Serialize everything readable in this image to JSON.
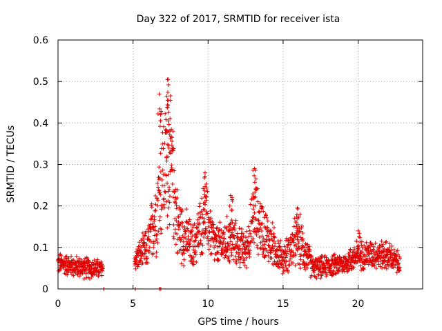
{
  "chart_data": {
    "type": "scatter",
    "title": "Day 322 of 2017, SRMTID for receiver ista",
    "xlabel": "GPS time / hours",
    "ylabel": "SRMTID / TECUs",
    "xlim": [
      0,
      24.3
    ],
    "ylim": [
      0,
      0.6
    ],
    "grid": true,
    "x_ticks": [
      0,
      5,
      10,
      15,
      20
    ],
    "y_ticks": [
      0,
      0.1,
      0.2,
      0.3,
      0.4,
      0.5,
      0.6
    ],
    "x_tick_labels": [
      "0",
      "5",
      "10",
      "15",
      "20"
    ],
    "y_tick_labels": [
      "0",
      "0.1",
      "0.2",
      "0.3",
      "0.4",
      "0.5",
      "0.6"
    ],
    "series": [
      {
        "name": "SRMTID",
        "color": "#e00000",
        "marker": "plus",
        "envelope": [
          {
            "x": 0.0,
            "base": 0.062,
            "spread": 0.03
          },
          {
            "x": 1.0,
            "base": 0.055,
            "spread": 0.03
          },
          {
            "x": 2.0,
            "base": 0.05,
            "spread": 0.03
          },
          {
            "x": 3.0,
            "base": 0.048,
            "spread": 0.025
          },
          {
            "x": 5.1,
            "base": 0.07,
            "spread": 0.03
          },
          {
            "x": 6.0,
            "base": 0.1,
            "spread": 0.06
          },
          {
            "x": 6.5,
            "base": 0.18,
            "spread": 0.12
          },
          {
            "x": 7.0,
            "base": 0.28,
            "spread": 0.18
          },
          {
            "x": 7.5,
            "base": 0.3,
            "spread": 0.18
          },
          {
            "x": 8.0,
            "base": 0.15,
            "spread": 0.1
          },
          {
            "x": 9.0,
            "base": 0.1,
            "spread": 0.06
          },
          {
            "x": 9.8,
            "base": 0.18,
            "spread": 0.1
          },
          {
            "x": 10.5,
            "base": 0.1,
            "spread": 0.06
          },
          {
            "x": 11.5,
            "base": 0.12,
            "spread": 0.07
          },
          {
            "x": 12.5,
            "base": 0.09,
            "spread": 0.05
          },
          {
            "x": 13.1,
            "base": 0.18,
            "spread": 0.1
          },
          {
            "x": 14.0,
            "base": 0.12,
            "spread": 0.07
          },
          {
            "x": 15.0,
            "base": 0.07,
            "spread": 0.04
          },
          {
            "x": 16.0,
            "base": 0.12,
            "spread": 0.08
          },
          {
            "x": 17.0,
            "base": 0.05,
            "spread": 0.03
          },
          {
            "x": 18.0,
            "base": 0.055,
            "spread": 0.03
          },
          {
            "x": 19.0,
            "base": 0.06,
            "spread": 0.03
          },
          {
            "x": 20.0,
            "base": 0.08,
            "spread": 0.04
          },
          {
            "x": 21.0,
            "base": 0.085,
            "spread": 0.04
          },
          {
            "x": 22.0,
            "base": 0.08,
            "spread": 0.04
          },
          {
            "x": 22.8,
            "base": 0.06,
            "spread": 0.03
          }
        ],
        "segments": [
          [
            0.0,
            3.0
          ],
          [
            5.1,
            22.8
          ]
        ],
        "peaks": [
          {
            "x": 6.75,
            "y": 0.47
          },
          {
            "x": 7.35,
            "y": 0.505
          },
          {
            "x": 7.3,
            "y": 0.455
          },
          {
            "x": 7.55,
            "y": 0.385
          },
          {
            "x": 9.8,
            "y": 0.28
          },
          {
            "x": 11.5,
            "y": 0.225
          },
          {
            "x": 13.1,
            "y": 0.29
          },
          {
            "x": 15.95,
            "y": 0.195
          },
          {
            "x": 20.0,
            "y": 0.14
          }
        ],
        "zero_points": [
          {
            "x": 5.15,
            "y": 0.0
          },
          {
            "x": 6.75,
            "y": 0.0
          },
          {
            "x": 6.85,
            "y": 0.0
          },
          {
            "x": 3.05,
            "y": 0.0
          }
        ]
      }
    ]
  }
}
